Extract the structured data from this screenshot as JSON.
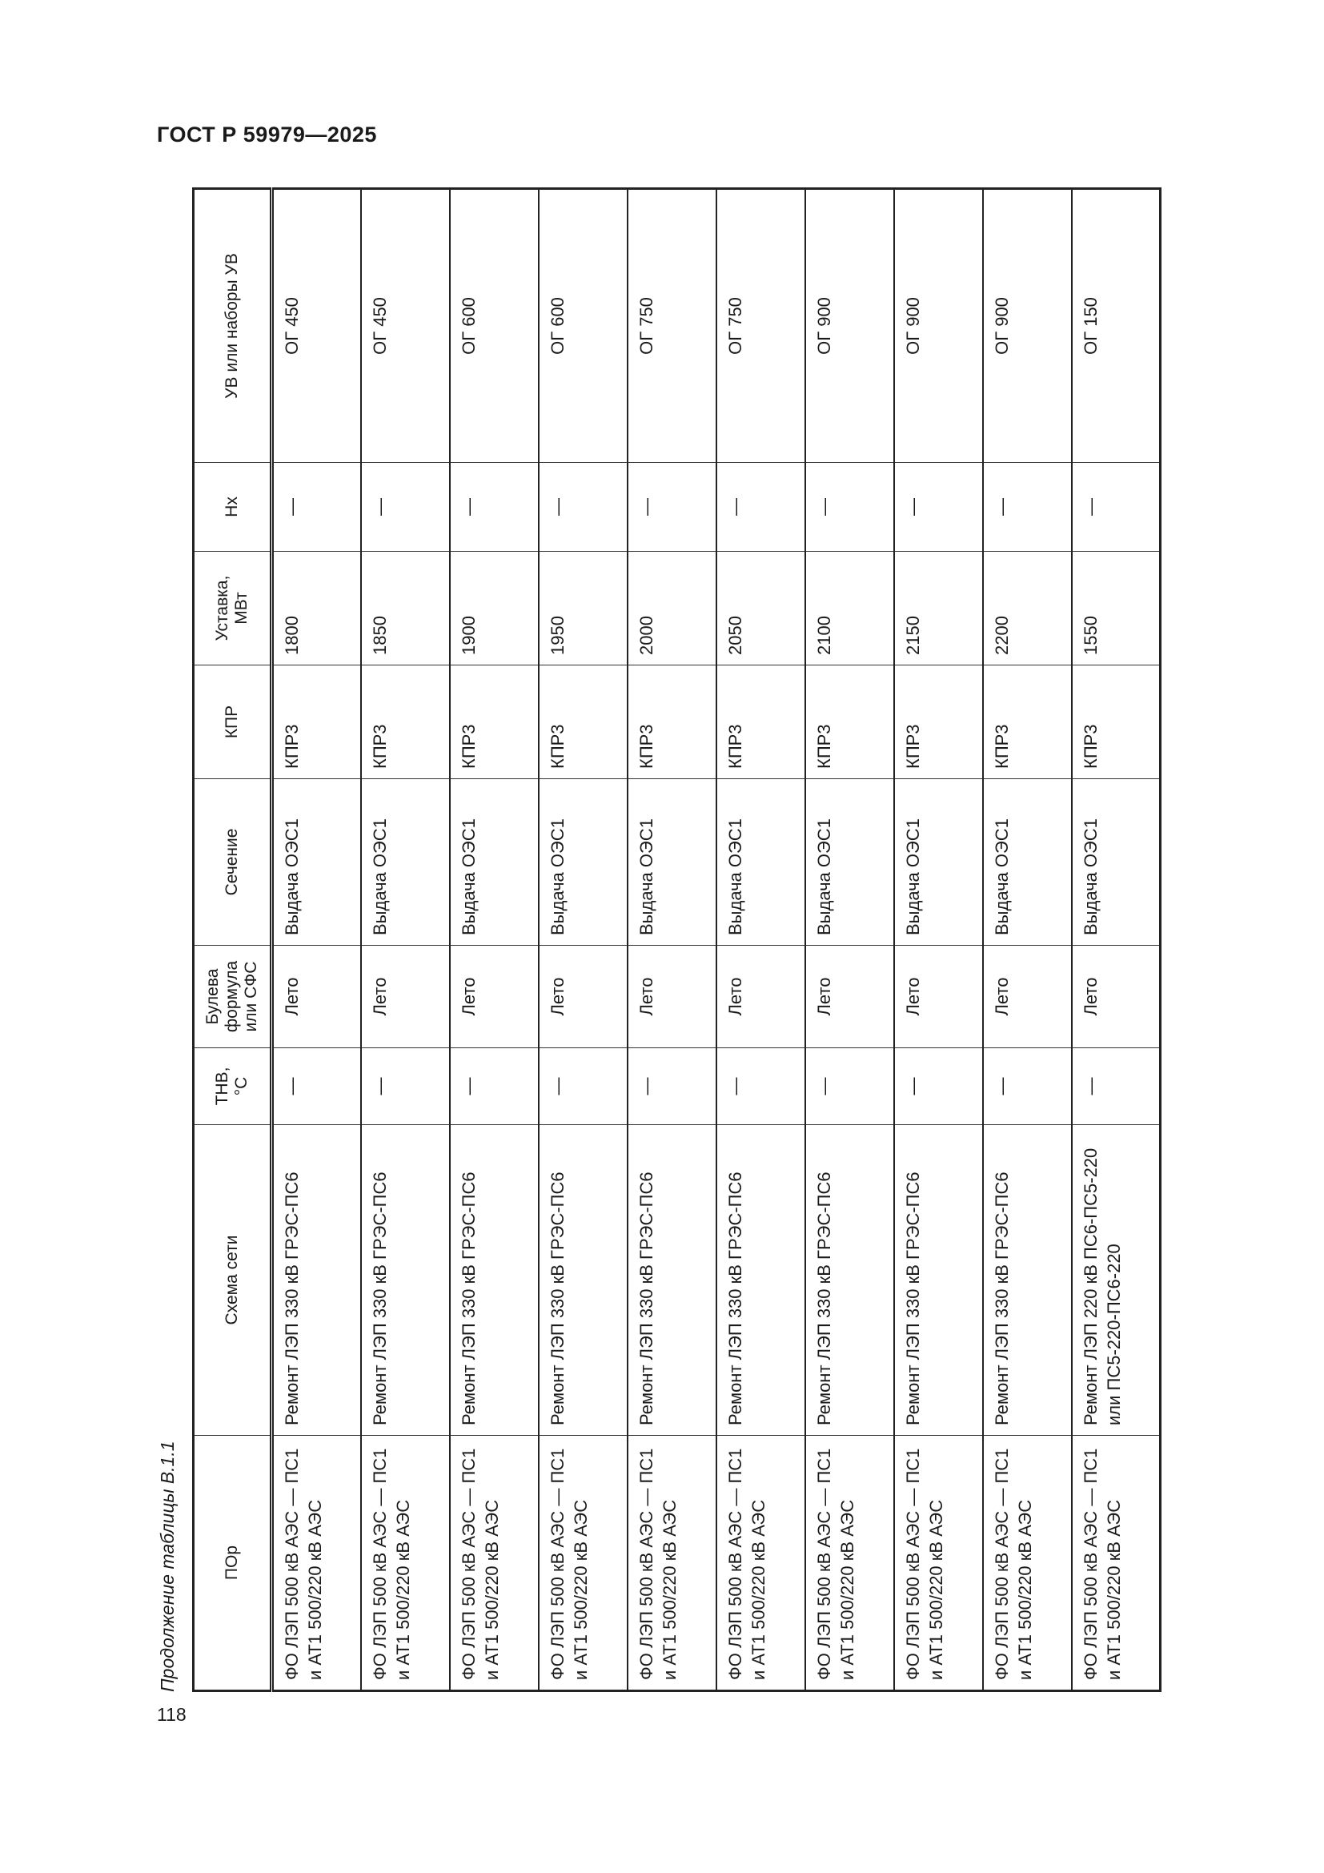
{
  "document": {
    "code": "ГОСТ Р 59979—2025",
    "page_number": "118"
  },
  "table": {
    "caption": "Продолжение таблицы В.1.1",
    "headers": [
      "ПОр",
      "Схема сети",
      "ТНВ, °С",
      "Булева формула или СФС",
      "Сечение",
      "КПР",
      "Уставка, МВт",
      "Нх",
      "УВ или наборы УВ"
    ],
    "rows": [
      [
        "ФО ЛЭП 500 кВ АЭС — ПС1 и АТ1 500/220 кВ АЭС",
        "Ремонт ЛЭП 330 кВ ГРЭС-ПС6",
        "—",
        "Лето",
        "Выдача ОЭС1",
        "КПР3",
        "1800",
        "—",
        "ОГ 450"
      ],
      [
        "ФО ЛЭП 500 кВ АЭС — ПС1 и АТ1 500/220 кВ АЭС",
        "Ремонт ЛЭП 330 кВ ГРЭС-ПС6",
        "—",
        "Лето",
        "Выдача ОЭС1",
        "КПР3",
        "1850",
        "—",
        "ОГ 450"
      ],
      [
        "ФО ЛЭП 500 кВ АЭС — ПС1 и АТ1 500/220 кВ АЭС",
        "Ремонт ЛЭП 330 кВ ГРЭС-ПС6",
        "—",
        "Лето",
        "Выдача ОЭС1",
        "КПР3",
        "1900",
        "—",
        "ОГ 600"
      ],
      [
        "ФО ЛЭП 500 кВ АЭС — ПС1 и АТ1 500/220 кВ АЭС",
        "Ремонт ЛЭП 330 кВ ГРЭС-ПС6",
        "—",
        "Лето",
        "Выдача ОЭС1",
        "КПР3",
        "1950",
        "—",
        "ОГ 600"
      ],
      [
        "ФО ЛЭП 500 кВ АЭС — ПС1 и АТ1 500/220 кВ АЭС",
        "Ремонт ЛЭП 330 кВ ГРЭС-ПС6",
        "—",
        "Лето",
        "Выдача ОЭС1",
        "КПР3",
        "2000",
        "—",
        "ОГ 750"
      ],
      [
        "ФО ЛЭП 500 кВ АЭС — ПС1 и АТ1 500/220 кВ АЭС",
        "Ремонт ЛЭП 330 кВ ГРЭС-ПС6",
        "—",
        "Лето",
        "Выдача ОЭС1",
        "КПР3",
        "2050",
        "—",
        "ОГ 750"
      ],
      [
        "ФО ЛЭП 500 кВ АЭС — ПС1 и АТ1 500/220 кВ АЭС",
        "Ремонт ЛЭП 330 кВ ГРЭС-ПС6",
        "—",
        "Лето",
        "Выдача ОЭС1",
        "КПР3",
        "2100",
        "—",
        "ОГ 900"
      ],
      [
        "ФО ЛЭП 500 кВ АЭС — ПС1 и АТ1 500/220 кВ АЭС",
        "Ремонт ЛЭП 330 кВ ГРЭС-ПС6",
        "—",
        "Лето",
        "Выдача ОЭС1",
        "КПР3",
        "2150",
        "—",
        "ОГ 900"
      ],
      [
        "ФО ЛЭП 500 кВ АЭС — ПС1 и АТ1 500/220 кВ АЭС",
        "Ремонт ЛЭП 330 кВ ГРЭС-ПС6",
        "—",
        "Лето",
        "Выдача ОЭС1",
        "КПР3",
        "2200",
        "—",
        "ОГ 900"
      ],
      [
        "ФО ЛЭП 500 кВ АЭС — ПС1 и АТ1 500/220 кВ АЭС",
        "Ремонт ЛЭП 220 кВ ПС6-ПС5-220 или ПС5-220-ПС6-220",
        "—",
        "Лето",
        "Выдача ОЭС1",
        "КПР3",
        "1550",
        "—",
        "ОГ 150"
      ]
    ]
  }
}
